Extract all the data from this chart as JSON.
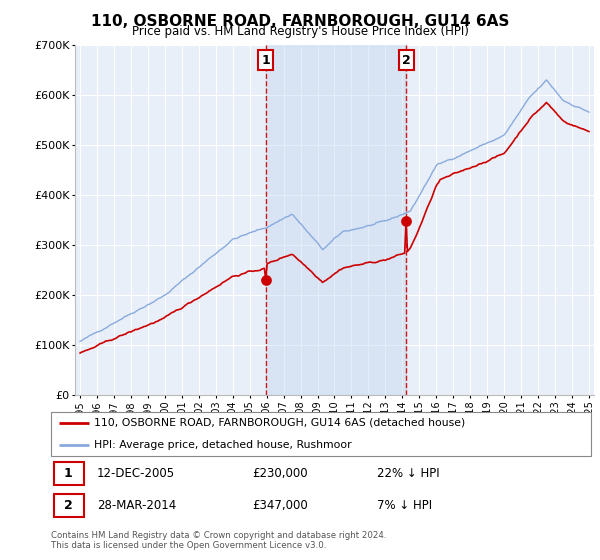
{
  "title": "110, OSBORNE ROAD, FARNBOROUGH, GU14 6AS",
  "subtitle": "Price paid vs. HM Land Registry's House Price Index (HPI)",
  "legend_house": "110, OSBORNE ROAD, FARNBOROUGH, GU14 6AS (detached house)",
  "legend_hpi": "HPI: Average price, detached house, Rushmoor",
  "footnote1": "Contains HM Land Registry data © Crown copyright and database right 2024.",
  "footnote2": "This data is licensed under the Open Government Licence v3.0.",
  "event1_label": "1",
  "event1_date": "12-DEC-2005",
  "event1_price": "£230,000",
  "event1_note": "22% ↓ HPI",
  "event2_label": "2",
  "event2_date": "28-MAR-2014",
  "event2_price": "£347,000",
  "event2_note": "7% ↓ HPI",
  "event1_x": 2005.95,
  "event1_y": 230000,
  "event2_x": 2014.24,
  "event2_y": 347000,
  "house_color": "#cc0000",
  "hpi_color": "#88aadd",
  "shade_color": "#dde8f5",
  "background_color": "#e8eff8",
  "plot_bg": "#e8eff8",
  "grid_color": "#ffffff",
  "ylim": [
    0,
    700000
  ],
  "xlim": [
    1994.7,
    2025.3
  ],
  "ylabel_ticks": [
    0,
    100000,
    200000,
    300000,
    400000,
    500000,
    600000,
    700000
  ],
  "xtick_labels": [
    "1995",
    "1996",
    "1997",
    "1998",
    "1999",
    "2000",
    "2001",
    "2002",
    "2003",
    "2004",
    "2005",
    "2006",
    "2007",
    "2008",
    "2009",
    "2010",
    "2011",
    "2012",
    "2013",
    "2014",
    "2015",
    "2016",
    "2017",
    "2018",
    "2019",
    "2020",
    "2021",
    "2022",
    "2023",
    "2024",
    "2025"
  ],
  "xtick_values": [
    1995,
    1996,
    1997,
    1998,
    1999,
    2000,
    2001,
    2002,
    2003,
    2004,
    2005,
    2006,
    2007,
    2008,
    2009,
    2010,
    2011,
    2012,
    2013,
    2014,
    2015,
    2016,
    2017,
    2018,
    2019,
    2020,
    2021,
    2022,
    2023,
    2024,
    2025
  ]
}
